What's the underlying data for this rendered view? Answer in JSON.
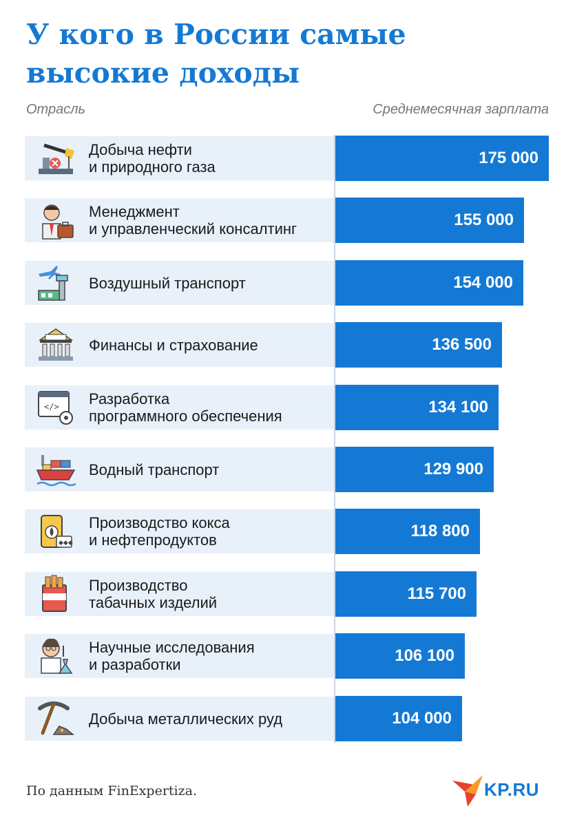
{
  "title": "У кого в России самые высокие доходы",
  "column_left": "Отрасль",
  "column_right": "Среднемесячная зарплата",
  "source": "По данным FinExpertiza.",
  "logo_text": "KP.RU",
  "colors": {
    "accent": "#1479d4",
    "row_bg": "#e8f0fa",
    "logo_red": "#e8412c",
    "logo_orange": "#f59b2b"
  },
  "chart_data": {
    "type": "bar",
    "title": "У кого в России самые высокие доходы",
    "xlabel": "Отрасль",
    "ylabel": "Среднемесячная зарплата",
    "orientation": "horizontal",
    "categories": [
      "Добыча нефти\nи природного газа",
      "Менеджмент\nи управленческий консалтинг",
      "Воздушный транспорт",
      "Финансы и страхование",
      "Разработка\nпрограммного обеспечения",
      "Водный транспорт",
      "Производство кокса\nи нефтепродуктов",
      "Производство\nтабачных изделий",
      "Научные исследования\nи разработки",
      "Добыча металлических руд"
    ],
    "icons": [
      "oil-pump-icon",
      "manager-icon",
      "airport-icon",
      "bank-icon",
      "code-settings-icon",
      "cargo-ship-icon",
      "oil-barrel-icon",
      "cigarette-pack-icon",
      "scientist-icon",
      "pickaxe-icon"
    ],
    "values": [
      175000,
      155000,
      154000,
      136500,
      134100,
      129900,
      118800,
      115700,
      106100,
      104000
    ],
    "value_labels": [
      "175 000",
      "155 000",
      "154 000",
      "136 500",
      "134 100",
      "129 900",
      "118 800",
      "115 700",
      "106 100",
      "104 000"
    ],
    "xlim": [
      0,
      175000
    ],
    "grid": false,
    "legend": "none"
  }
}
